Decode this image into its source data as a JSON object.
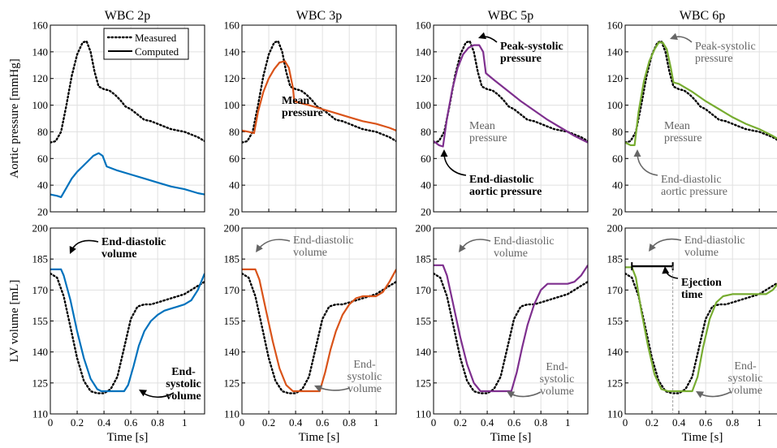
{
  "figure": {
    "ylabel_top": "Aortic pressure [mmHg]",
    "ylabel_bottom": "LV volume [mL]",
    "xlabel": "Time [s]",
    "legend": {
      "measured": "Measured",
      "computed": "Computed"
    }
  },
  "chart_data": [
    {
      "type": "line",
      "title": "WBC 2p",
      "ylabel": "Aortic pressure [mmHg]",
      "xlim": [
        0,
        1.15
      ],
      "ylim": [
        20,
        160
      ],
      "yticks": [
        20,
        40,
        60,
        80,
        100,
        120,
        140,
        160
      ],
      "grid": true,
      "legend": "top-right",
      "series": [
        {
          "name": "Measured",
          "style": "dotted",
          "color": "#000000",
          "x": [
            0,
            0.04,
            0.08,
            0.12,
            0.16,
            0.2,
            0.24,
            0.27,
            0.3,
            0.33,
            0.36,
            0.4,
            0.44,
            0.48,
            0.52,
            0.56,
            0.6,
            0.65,
            0.7,
            0.75,
            0.8,
            0.85,
            0.9,
            0.95,
            1.0,
            1.05,
            1.1,
            1.15
          ],
          "y": [
            72,
            73,
            80,
            100,
            122,
            138,
            147,
            148,
            140,
            125,
            114,
            112,
            111,
            108,
            104,
            99,
            97,
            93,
            89,
            88,
            86,
            84,
            82,
            81,
            80,
            78,
            76,
            73
          ]
        },
        {
          "name": "Computed",
          "style": "solid",
          "color": "#0072BD",
          "x": [
            0,
            0.05,
            0.08,
            0.12,
            0.16,
            0.2,
            0.24,
            0.28,
            0.32,
            0.36,
            0.39,
            0.42,
            0.5,
            0.6,
            0.7,
            0.8,
            0.9,
            1.0,
            1.1,
            1.15
          ],
          "y": [
            33,
            32,
            31,
            38,
            45,
            50,
            54,
            58,
            62,
            64,
            62,
            54,
            51,
            48,
            45,
            42,
            39,
            37,
            34,
            33
          ]
        }
      ]
    },
    {
      "type": "line",
      "title": "WBC 3p",
      "xlim": [
        0,
        1.15
      ],
      "ylim": [
        20,
        160
      ],
      "yticks": [
        20,
        40,
        60,
        80,
        100,
        120,
        140,
        160
      ],
      "grid": true,
      "series": [
        {
          "style": "dotted",
          "color": "#000000",
          "x": [
            0,
            0.04,
            0.08,
            0.12,
            0.16,
            0.2,
            0.24,
            0.27,
            0.3,
            0.33,
            0.36,
            0.4,
            0.44,
            0.48,
            0.52,
            0.56,
            0.6,
            0.65,
            0.7,
            0.75,
            0.8,
            0.85,
            0.9,
            0.95,
            1.0,
            1.05,
            1.1,
            1.15
          ],
          "y": [
            72,
            73,
            80,
            100,
            122,
            138,
            147,
            148,
            140,
            125,
            114,
            112,
            111,
            108,
            104,
            99,
            97,
            93,
            89,
            88,
            86,
            84,
            82,
            81,
            80,
            78,
            76,
            73
          ]
        },
        {
          "style": "solid",
          "color": "#D95319",
          "x": [
            0,
            0.05,
            0.09,
            0.12,
            0.16,
            0.2,
            0.24,
            0.28,
            0.32,
            0.35,
            0.38,
            0.39,
            0.42,
            0.5,
            0.6,
            0.7,
            0.8,
            0.9,
            1.0,
            1.1,
            1.15
          ],
          "y": [
            81,
            80,
            79,
            95,
            110,
            120,
            127,
            132,
            133,
            128,
            113,
            103,
            102,
            100,
            97,
            94,
            91,
            88,
            86,
            83,
            81
          ]
        }
      ]
    },
    {
      "type": "line",
      "title": "WBC 5p",
      "xlim": [
        0,
        1.15
      ],
      "ylim": [
        20,
        160
      ],
      "yticks": [
        20,
        40,
        60,
        80,
        100,
        120,
        140,
        160
      ],
      "grid": true,
      "series": [
        {
          "style": "dotted",
          "color": "#000000",
          "x": [
            0,
            0.04,
            0.08,
            0.12,
            0.16,
            0.2,
            0.24,
            0.27,
            0.3,
            0.33,
            0.36,
            0.4,
            0.44,
            0.48,
            0.52,
            0.56,
            0.6,
            0.65,
            0.7,
            0.75,
            0.8,
            0.85,
            0.9,
            0.95,
            1.0,
            1.05,
            1.1,
            1.15
          ],
          "y": [
            72,
            73,
            80,
            100,
            122,
            138,
            147,
            148,
            140,
            125,
            114,
            112,
            111,
            108,
            104,
            99,
            97,
            93,
            89,
            88,
            86,
            84,
            82,
            81,
            80,
            78,
            76,
            73
          ]
        },
        {
          "style": "solid",
          "color": "#7E2F8E",
          "x": [
            0,
            0.04,
            0.07,
            0.1,
            0.14,
            0.18,
            0.22,
            0.26,
            0.3,
            0.34,
            0.37,
            0.39,
            0.45,
            0.55,
            0.65,
            0.75,
            0.85,
            0.95,
            1.05,
            1.15
          ],
          "y": [
            73,
            70,
            69,
            90,
            112,
            128,
            138,
            143,
            145,
            145,
            140,
            124,
            119,
            111,
            103,
            96,
            89,
            83,
            77,
            72
          ]
        }
      ]
    },
    {
      "type": "line",
      "title": "WBC 6p",
      "xlim": [
        0,
        1.15
      ],
      "ylim": [
        20,
        160
      ],
      "yticks": [
        20,
        40,
        60,
        80,
        100,
        120,
        140,
        160
      ],
      "grid": true,
      "series": [
        {
          "style": "dotted",
          "color": "#000000",
          "x": [
            0,
            0.04,
            0.08,
            0.12,
            0.16,
            0.2,
            0.24,
            0.27,
            0.3,
            0.33,
            0.36,
            0.4,
            0.44,
            0.48,
            0.52,
            0.56,
            0.6,
            0.65,
            0.7,
            0.75,
            0.8,
            0.85,
            0.9,
            0.95,
            1.0,
            1.05,
            1.1,
            1.15
          ],
          "y": [
            72,
            73,
            80,
            100,
            122,
            138,
            147,
            148,
            140,
            125,
            114,
            112,
            111,
            108,
            104,
            99,
            97,
            93,
            89,
            88,
            86,
            84,
            82,
            81,
            80,
            78,
            76,
            73
          ]
        },
        {
          "style": "solid",
          "color": "#77AC30",
          "x": [
            0,
            0.04,
            0.07,
            0.1,
            0.14,
            0.18,
            0.22,
            0.25,
            0.28,
            0.31,
            0.34,
            0.36,
            0.4,
            0.5,
            0.6,
            0.7,
            0.8,
            0.9,
            1.0,
            1.1,
            1.15
          ],
          "y": [
            72,
            70,
            70,
            95,
            118,
            133,
            142,
            147,
            147,
            142,
            128,
            117,
            116,
            110,
            103,
            97,
            91,
            86,
            82,
            77,
            74
          ]
        }
      ]
    },
    {
      "type": "line",
      "ylabel": "LV volume [mL]",
      "xlabel": "Time [s]",
      "xlim": [
        0,
        1.15
      ],
      "ylim": [
        110,
        200
      ],
      "yticks": [
        110,
        125,
        140,
        155,
        170,
        185,
        200
      ],
      "xticks": [
        0,
        0.2,
        0.4,
        0.6,
        0.8,
        1
      ],
      "grid": true,
      "series": [
        {
          "style": "dotted",
          "color": "#000000",
          "x": [
            0,
            0.05,
            0.1,
            0.15,
            0.2,
            0.25,
            0.3,
            0.35,
            0.4,
            0.45,
            0.5,
            0.55,
            0.6,
            0.65,
            0.7,
            0.75,
            0.8,
            0.85,
            0.9,
            0.95,
            1.0,
            1.05,
            1.1,
            1.15
          ],
          "y": [
            178,
            176,
            167,
            152,
            137,
            126,
            121,
            120,
            120,
            122,
            128,
            142,
            156,
            162,
            163,
            163,
            164,
            165,
            166,
            167,
            168,
            170,
            172,
            174
          ]
        },
        {
          "style": "solid",
          "color": "#0072BD",
          "x": [
            0,
            0.08,
            0.1,
            0.15,
            0.2,
            0.25,
            0.3,
            0.35,
            0.38,
            0.45,
            0.55,
            0.58,
            0.62,
            0.66,
            0.7,
            0.75,
            0.8,
            0.85,
            0.9,
            0.95,
            1.0,
            1.05,
            1.1,
            1.15
          ],
          "y": [
            180,
            180,
            177,
            165,
            150,
            137,
            127,
            122,
            121,
            121,
            121,
            124,
            133,
            143,
            150,
            155,
            158,
            160,
            161,
            162,
            163,
            165,
            170,
            178
          ]
        }
      ]
    },
    {
      "type": "line",
      "xlabel": "Time [s]",
      "xlim": [
        0,
        1.15
      ],
      "ylim": [
        110,
        200
      ],
      "yticks": [
        110,
        125,
        140,
        155,
        170,
        185,
        200
      ],
      "xticks": [
        0,
        0.2,
        0.4,
        0.6,
        0.8,
        1
      ],
      "grid": true,
      "series": [
        {
          "style": "dotted",
          "color": "#000000",
          "x": [
            0,
            0.05,
            0.1,
            0.15,
            0.2,
            0.25,
            0.3,
            0.35,
            0.4,
            0.45,
            0.5,
            0.55,
            0.6,
            0.65,
            0.7,
            0.75,
            0.8,
            0.85,
            0.9,
            0.95,
            1.0,
            1.05,
            1.1,
            1.15
          ],
          "y": [
            178,
            176,
            167,
            152,
            137,
            126,
            121,
            120,
            120,
            122,
            128,
            142,
            156,
            162,
            163,
            163,
            164,
            165,
            166,
            167,
            168,
            170,
            172,
            174
          ]
        },
        {
          "style": "solid",
          "color": "#D95319",
          "x": [
            0,
            0.1,
            0.13,
            0.18,
            0.23,
            0.28,
            0.33,
            0.38,
            0.42,
            0.5,
            0.58,
            0.62,
            0.66,
            0.7,
            0.75,
            0.8,
            0.85,
            0.9,
            0.95,
            1.0,
            1.05,
            1.1,
            1.15
          ],
          "y": [
            180,
            180,
            175,
            160,
            145,
            132,
            124,
            121,
            121,
            121,
            121,
            130,
            141,
            150,
            158,
            163,
            166,
            167,
            167,
            167,
            169,
            174,
            180
          ]
        }
      ]
    },
    {
      "type": "line",
      "xlabel": "Time [s]",
      "xlim": [
        0,
        1.15
      ],
      "ylim": [
        110,
        200
      ],
      "yticks": [
        110,
        125,
        140,
        155,
        170,
        185,
        200
      ],
      "xticks": [
        0,
        0.2,
        0.4,
        0.6,
        0.8,
        1
      ],
      "grid": true,
      "series": [
        {
          "style": "dotted",
          "color": "#000000",
          "x": [
            0,
            0.05,
            0.1,
            0.15,
            0.2,
            0.25,
            0.3,
            0.35,
            0.4,
            0.45,
            0.5,
            0.55,
            0.6,
            0.65,
            0.7,
            0.75,
            0.8,
            0.85,
            0.9,
            0.95,
            1.0,
            1.05,
            1.1,
            1.15
          ],
          "y": [
            178,
            176,
            167,
            152,
            137,
            126,
            121,
            120,
            120,
            122,
            128,
            142,
            156,
            162,
            163,
            163,
            164,
            165,
            166,
            167,
            168,
            170,
            172,
            174
          ]
        },
        {
          "style": "solid",
          "color": "#7E2F8E",
          "x": [
            0,
            0.07,
            0.1,
            0.15,
            0.2,
            0.25,
            0.3,
            0.35,
            0.4,
            0.5,
            0.58,
            0.62,
            0.66,
            0.7,
            0.75,
            0.8,
            0.85,
            0.9,
            0.95,
            1.0,
            1.05,
            1.1,
            1.15
          ],
          "y": [
            182,
            182,
            177,
            162,
            147,
            134,
            125,
            121,
            121,
            121,
            121,
            130,
            142,
            153,
            163,
            170,
            173,
            173,
            173,
            173,
            174,
            177,
            182
          ]
        }
      ]
    },
    {
      "type": "line",
      "xlabel": "Time [s]",
      "xlim": [
        0,
        1.15
      ],
      "ylim": [
        110,
        200
      ],
      "yticks": [
        110,
        125,
        140,
        155,
        170,
        185,
        200
      ],
      "xticks": [
        0,
        0.2,
        0.4,
        0.6,
        0.8,
        1
      ],
      "grid": true,
      "series": [
        {
          "style": "dotted",
          "color": "#000000",
          "x": [
            0,
            0.05,
            0.1,
            0.15,
            0.2,
            0.25,
            0.3,
            0.35,
            0.4,
            0.45,
            0.5,
            0.55,
            0.6,
            0.65,
            0.7,
            0.75,
            0.8,
            0.85,
            0.9,
            0.95,
            1.0,
            1.05,
            1.1,
            1.15
          ],
          "y": [
            178,
            176,
            167,
            152,
            137,
            126,
            121,
            120,
            120,
            122,
            128,
            142,
            156,
            162,
            163,
            163,
            164,
            165,
            166,
            167,
            168,
            170,
            172,
            174
          ]
        },
        {
          "style": "solid",
          "color": "#77AC30",
          "x": [
            0,
            0.05,
            0.08,
            0.12,
            0.17,
            0.22,
            0.27,
            0.32,
            0.36,
            0.45,
            0.5,
            0.54,
            0.58,
            0.63,
            0.68,
            0.73,
            0.8,
            0.9,
            1.0,
            1.05,
            1.1,
            1.15
          ],
          "y": [
            181,
            181,
            176,
            160,
            143,
            129,
            122,
            121,
            121,
            121,
            121,
            128,
            142,
            156,
            164,
            167,
            168,
            168,
            168,
            168,
            170,
            174
          ]
        }
      ]
    }
  ],
  "annotations": {
    "p2_mean": [
      "Mean",
      "pressure"
    ],
    "p3_peak": [
      "Peak-systolic",
      "pressure"
    ],
    "p3_mean": [
      "Mean",
      "pressure"
    ],
    "p3_ed": [
      "End-diastolic",
      "aortic pressure"
    ],
    "p4_peak": [
      "Peak-systolic",
      "pressure"
    ],
    "p4_mean": [
      "Mean",
      "pressure"
    ],
    "p4_ed": [
      "End-diastolic",
      "aortic pressure"
    ],
    "v1_edv": [
      "End-diastolic",
      "volume"
    ],
    "v1_esv": [
      "End-",
      "systolic",
      "volume"
    ],
    "v2_edv": [
      "End-diastolic",
      "volume"
    ],
    "v2_esv": [
      "End-",
      "systolic",
      "volume"
    ],
    "v3_edv": [
      "End-diastolic",
      "volume"
    ],
    "v3_esv": [
      "End-",
      "systolic",
      "volume"
    ],
    "v4_edv": [
      "End-diastolic",
      "volume"
    ],
    "v4_ej": [
      "Ejection",
      "time"
    ],
    "v4_esv": [
      "End-",
      "systolic",
      "volume"
    ]
  },
  "colors": {
    "grid": "#e0e0e0",
    "gray_annotation": "#666666"
  }
}
